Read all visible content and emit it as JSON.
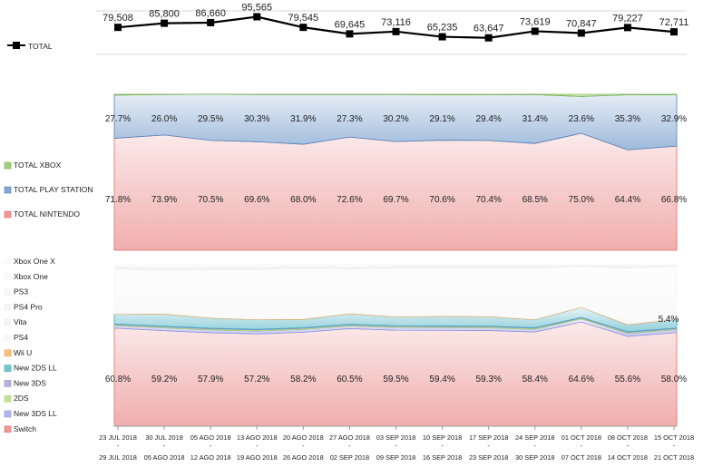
{
  "chart_data": {
    "type": "dashboard",
    "dates": [
      {
        "start": "23 JUL 2018",
        "end": "29 JUL 2018"
      },
      {
        "start": "30 JUL 2018",
        "end": "05 AGO 2018"
      },
      {
        "start": "05 AGO 2018",
        "end": "12 AGO 2018"
      },
      {
        "start": "13 AGO 2018",
        "end": "19 AGO 2018"
      },
      {
        "start": "20 AGO 2018",
        "end": "26 AGO 2018"
      },
      {
        "start": "27 AGO 2018",
        "end": "02 SEP 2018"
      },
      {
        "start": "03 SEP 2018",
        "end": "09 SEP 2018"
      },
      {
        "start": "10 SEP 2018",
        "end": "16 SEP 2018"
      },
      {
        "start": "17 SEP 2018",
        "end": "23 SEP 2018"
      },
      {
        "start": "24 SEP 2018",
        "end": "30 SEP 2018"
      },
      {
        "start": "01 OCT 2018",
        "end": "07 OCT 2018"
      },
      {
        "start": "08 OCT 2018",
        "end": "14 OCT 2018"
      },
      {
        "start": "15 OCT 2018",
        "end": "21 OCT 2018"
      }
    ],
    "total": {
      "type": "line",
      "series_name": "TOTAL",
      "values": [
        79508,
        85800,
        86660,
        95565,
        79545,
        69645,
        73116,
        65235,
        63647,
        73619,
        70847,
        79227,
        72711
      ],
      "labels": [
        "79,508",
        "85,800",
        "86,660",
        "95,565",
        "79,545",
        "69,645",
        "73,116",
        "65,235",
        "63,647",
        "73,619",
        "70,847",
        "79,227",
        "72,711"
      ],
      "ylim": [
        0,
        110000
      ]
    },
    "platform_share": {
      "type": "area",
      "stacked": "percent",
      "series": [
        {
          "name": "TOTAL NINTENDO",
          "color": "#e46c6a",
          "values": [
            71.8,
            73.9,
            70.5,
            69.6,
            68.0,
            72.6,
            69.7,
            70.6,
            70.4,
            68.5,
            75.0,
            64.4,
            66.8
          ],
          "labels": [
            "71.8%",
            "73.9%",
            "70.5%",
            "69.6%",
            "68.0%",
            "72.6%",
            "69.7%",
            "70.6%",
            "70.4%",
            "68.5%",
            "75.0%",
            "64.4%",
            "66.8%"
          ]
        },
        {
          "name": "TOTAL PLAY STATION",
          "color": "#4f81bd",
          "values": [
            27.7,
            26.0,
            29.5,
            30.3,
            31.9,
            27.3,
            30.2,
            29.1,
            29.4,
            31.4,
            23.6,
            35.3,
            32.9
          ],
          "labels": [
            "27.7%",
            "26.0%",
            "29.5%",
            "30.3%",
            "31.9%",
            "27.3%",
            "30.2%",
            "29.1%",
            "29.4%",
            "31.4%",
            "23.6%",
            "35.3%",
            "32.9%"
          ]
        },
        {
          "name": "TOTAL XBOX",
          "color": "#7ab648",
          "values": [
            0.5,
            0.1,
            0.0,
            0.1,
            0.1,
            0.1,
            0.1,
            0.3,
            0.2,
            0.1,
            1.4,
            0.3,
            0.3
          ]
        }
      ]
    },
    "hardware_share": {
      "type": "area",
      "stacked": "percent",
      "series": [
        {
          "name": "Switch",
          "color": "#e46c6a",
          "values": [
            60.8,
            59.2,
            57.9,
            57.2,
            58.2,
            60.5,
            59.5,
            59.4,
            59.3,
            58.4,
            64.6,
            55.6,
            58.0
          ],
          "labels": [
            "60.8%",
            "59.2%",
            "57.9%",
            "57.2%",
            "58.2%",
            "60.5%",
            "59.5%",
            "59.4%",
            "59.3%",
            "58.4%",
            "64.6%",
            "55.6%",
            "58.0%"
          ]
        },
        {
          "name": "New 3DS LL",
          "color": "#8c96e6",
          "values": [
            1.5,
            1.7,
            1.8,
            1.8,
            1.8,
            1.6,
            1.7,
            1.7,
            1.7,
            1.6,
            1.8,
            1.9,
            1.8
          ]
        },
        {
          "name": "2DS",
          "color": "#a9d46f",
          "values": [
            0.6,
            0.6,
            0.6,
            0.6,
            0.6,
            0.6,
            0.6,
            0.6,
            0.6,
            0.6,
            0.6,
            0.6,
            0.6
          ]
        },
        {
          "name": "New 3DS",
          "color": "#9e8fd0",
          "values": [
            0.4,
            0.4,
            0.4,
            0.4,
            0.4,
            0.4,
            0.4,
            0.4,
            0.4,
            0.4,
            0.4,
            0.4,
            0.4
          ]
        },
        {
          "name": "New 2DS LL",
          "color": "#3aaabd",
          "values": [
            6.0,
            7.6,
            6.3,
            6.0,
            5.2,
            6.6,
            5.5,
            6.0,
            5.9,
            5.0,
            6.2,
            4.4,
            5.4
          ],
          "labels": [
            "",
            "",
            "",
            "",
            "",
            "",
            "",
            "",
            "",
            "",
            "",
            "",
            "5.4%"
          ]
        },
        {
          "name": "Wii U",
          "color": "#f1a24a",
          "values": [
            0.3,
            0.3,
            0.3,
            0.3,
            0.3,
            0.3,
            0.3,
            0.3,
            0.3,
            0.3,
            0.3,
            0.3,
            0.3
          ]
        },
        {
          "name": "PS4",
          "color": "#f4f4f4",
          "values": [
            28.0,
            27.0,
            30.0,
            31.0,
            31.5,
            27.5,
            30.0,
            29.6,
            29.8,
            31.7,
            25.1,
            34.8,
            32.5
          ]
        },
        {
          "name": "Vita",
          "color": "#eeeeee",
          "values": [
            0.6,
            0.6,
            0.6,
            0.6,
            0.6,
            0.6,
            0.6,
            0.6,
            0.6,
            0.6,
            0.6,
            0.6,
            0.6
          ]
        },
        {
          "name": "PS4 Pro",
          "color": "#f0f0f0",
          "values": [
            0.9,
            1.0,
            1.0,
            1.0,
            1.0,
            0.9,
            0.9,
            0.9,
            0.9,
            0.9,
            0.0,
            1.0,
            0.9
          ]
        },
        {
          "name": "PS3",
          "color": "#f2f2f2",
          "values": [
            0.0,
            0.0,
            0.0,
            0.0,
            0.0,
            0.0,
            0.0,
            0.0,
            0.0,
            0.0,
            0.0,
            0.0,
            0.0
          ]
        },
        {
          "name": "Xbox One",
          "color": "#f6f6f6",
          "values": [
            0.4,
            0.1,
            0.0,
            0.1,
            0.1,
            0.1,
            0.1,
            0.3,
            0.2,
            0.1,
            1.0,
            0.2,
            0.2
          ]
        },
        {
          "name": "Xbox One X",
          "color": "#f8f8f8",
          "values": [
            0.5,
            1.5,
            1.1,
            1.0,
            0.3,
            0.9,
            0.4,
            0.2,
            0.3,
            0.4,
            0.0,
            0.2,
            0.0
          ]
        }
      ]
    }
  }
}
